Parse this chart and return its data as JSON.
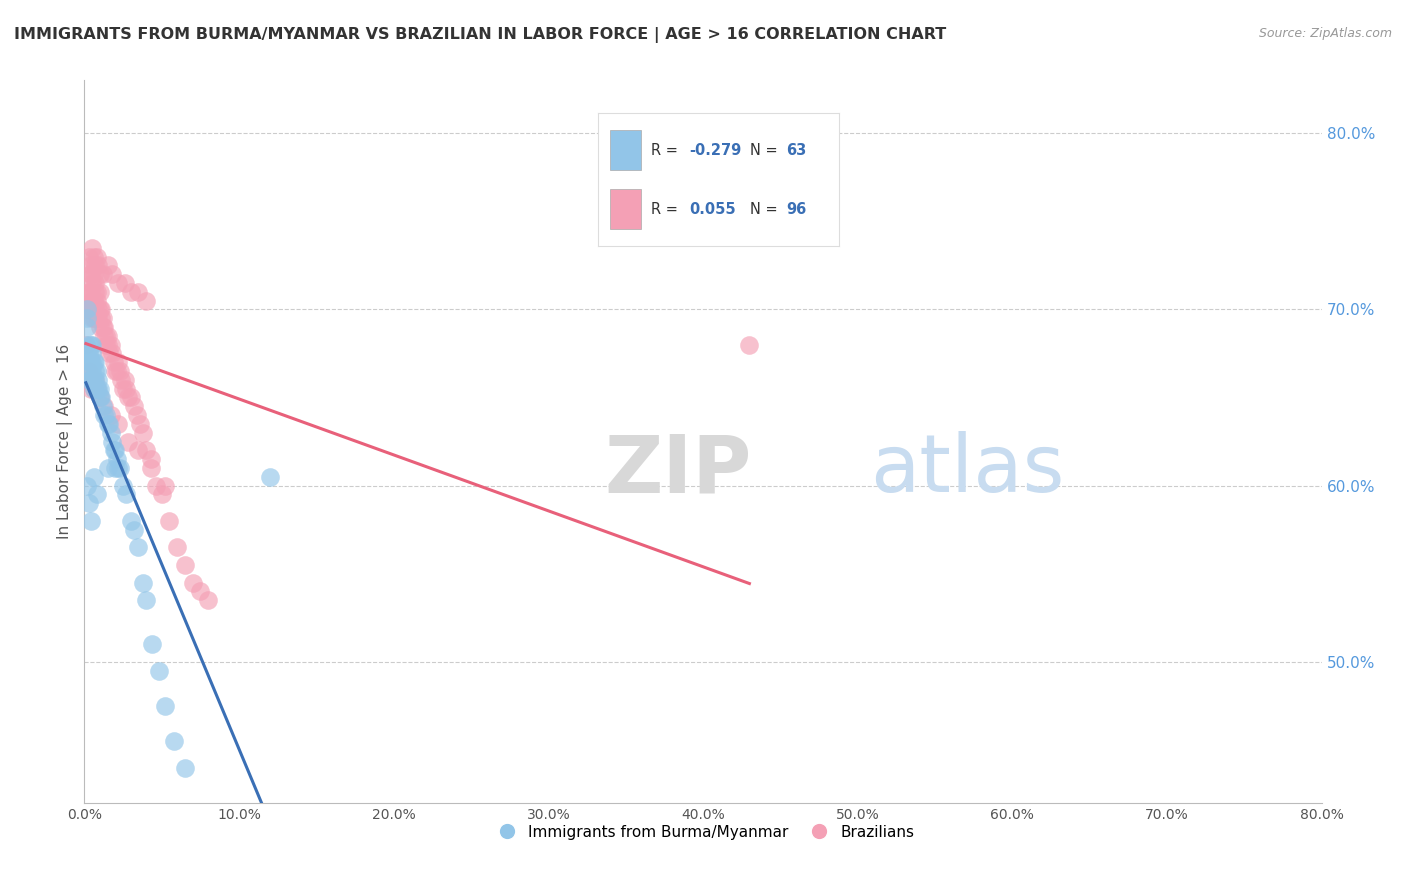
{
  "title": "IMMIGRANTS FROM BURMA/MYANMAR VS BRAZILIAN IN LABOR FORCE | AGE > 16 CORRELATION CHART",
  "source": "Source: ZipAtlas.com",
  "ylabel": "In Labor Force | Age > 16",
  "right_yticks": [
    50.0,
    60.0,
    70.0,
    80.0
  ],
  "blue_R": -0.279,
  "blue_N": 63,
  "pink_R": 0.055,
  "pink_N": 96,
  "blue_label": "Immigrants from Burma/Myanmar",
  "pink_label": "Brazilians",
  "blue_color": "#92C5E8",
  "pink_color": "#F4A0B5",
  "blue_line_color": "#3A6FB5",
  "pink_line_color": "#E8607A",
  "dashed_line_color": "#B0CCE8",
  "watermark_zip": "ZIP",
  "watermark_atlas": "atlas",
  "background_color": "#FFFFFF",
  "xlim": [
    0.0,
    0.8
  ],
  "ylim": [
    0.42,
    0.83
  ],
  "blue_scatter_x": [
    0.001,
    0.001,
    0.002,
    0.002,
    0.002,
    0.003,
    0.003,
    0.003,
    0.003,
    0.004,
    0.004,
    0.004,
    0.004,
    0.005,
    0.005,
    0.005,
    0.005,
    0.005,
    0.006,
    0.006,
    0.006,
    0.007,
    0.007,
    0.007,
    0.008,
    0.008,
    0.009,
    0.009,
    0.01,
    0.01,
    0.011,
    0.012,
    0.013,
    0.014,
    0.015,
    0.016,
    0.017,
    0.018,
    0.019,
    0.02,
    0.021,
    0.022,
    0.023,
    0.025,
    0.027,
    0.03,
    0.032,
    0.035,
    0.038,
    0.04,
    0.044,
    0.048,
    0.052,
    0.058,
    0.065,
    0.002,
    0.003,
    0.004,
    0.006,
    0.008,
    0.015,
    0.02,
    0.12
  ],
  "blue_scatter_y": [
    0.675,
    0.68,
    0.69,
    0.695,
    0.7,
    0.66,
    0.67,
    0.675,
    0.68,
    0.66,
    0.665,
    0.67,
    0.68,
    0.66,
    0.665,
    0.67,
    0.675,
    0.68,
    0.655,
    0.66,
    0.67,
    0.66,
    0.665,
    0.67,
    0.655,
    0.665,
    0.655,
    0.66,
    0.65,
    0.655,
    0.65,
    0.645,
    0.64,
    0.64,
    0.635,
    0.635,
    0.63,
    0.625,
    0.62,
    0.62,
    0.615,
    0.61,
    0.61,
    0.6,
    0.595,
    0.58,
    0.575,
    0.565,
    0.545,
    0.535,
    0.51,
    0.495,
    0.475,
    0.455,
    0.44,
    0.6,
    0.59,
    0.58,
    0.605,
    0.595,
    0.61,
    0.61,
    0.605
  ],
  "pink_scatter_x": [
    0.001,
    0.002,
    0.002,
    0.003,
    0.003,
    0.003,
    0.004,
    0.004,
    0.004,
    0.005,
    0.005,
    0.005,
    0.006,
    0.006,
    0.006,
    0.007,
    0.007,
    0.007,
    0.008,
    0.008,
    0.008,
    0.009,
    0.009,
    0.01,
    0.01,
    0.01,
    0.011,
    0.011,
    0.012,
    0.012,
    0.013,
    0.013,
    0.014,
    0.014,
    0.015,
    0.015,
    0.016,
    0.017,
    0.018,
    0.019,
    0.02,
    0.021,
    0.022,
    0.023,
    0.024,
    0.025,
    0.026,
    0.027,
    0.028,
    0.03,
    0.032,
    0.034,
    0.036,
    0.038,
    0.04,
    0.043,
    0.046,
    0.05,
    0.055,
    0.06,
    0.065,
    0.07,
    0.075,
    0.08,
    0.003,
    0.004,
    0.005,
    0.006,
    0.007,
    0.008,
    0.009,
    0.01,
    0.012,
    0.015,
    0.018,
    0.022,
    0.026,
    0.03,
    0.035,
    0.04,
    0.002,
    0.003,
    0.004,
    0.005,
    0.006,
    0.007,
    0.008,
    0.01,
    0.013,
    0.017,
    0.022,
    0.028,
    0.035,
    0.043,
    0.052,
    0.43
  ],
  "pink_scatter_y": [
    0.68,
    0.7,
    0.71,
    0.7,
    0.71,
    0.72,
    0.7,
    0.71,
    0.72,
    0.695,
    0.705,
    0.715,
    0.695,
    0.705,
    0.72,
    0.7,
    0.71,
    0.715,
    0.695,
    0.705,
    0.71,
    0.695,
    0.7,
    0.69,
    0.7,
    0.71,
    0.695,
    0.7,
    0.69,
    0.695,
    0.685,
    0.69,
    0.68,
    0.685,
    0.68,
    0.685,
    0.675,
    0.68,
    0.675,
    0.67,
    0.665,
    0.665,
    0.67,
    0.665,
    0.66,
    0.655,
    0.66,
    0.655,
    0.65,
    0.65,
    0.645,
    0.64,
    0.635,
    0.63,
    0.62,
    0.615,
    0.6,
    0.595,
    0.58,
    0.565,
    0.555,
    0.545,
    0.54,
    0.535,
    0.73,
    0.725,
    0.735,
    0.73,
    0.725,
    0.73,
    0.725,
    0.72,
    0.72,
    0.725,
    0.72,
    0.715,
    0.715,
    0.71,
    0.71,
    0.705,
    0.66,
    0.665,
    0.655,
    0.66,
    0.655,
    0.66,
    0.655,
    0.65,
    0.645,
    0.64,
    0.635,
    0.625,
    0.62,
    0.61,
    0.6,
    0.68
  ]
}
